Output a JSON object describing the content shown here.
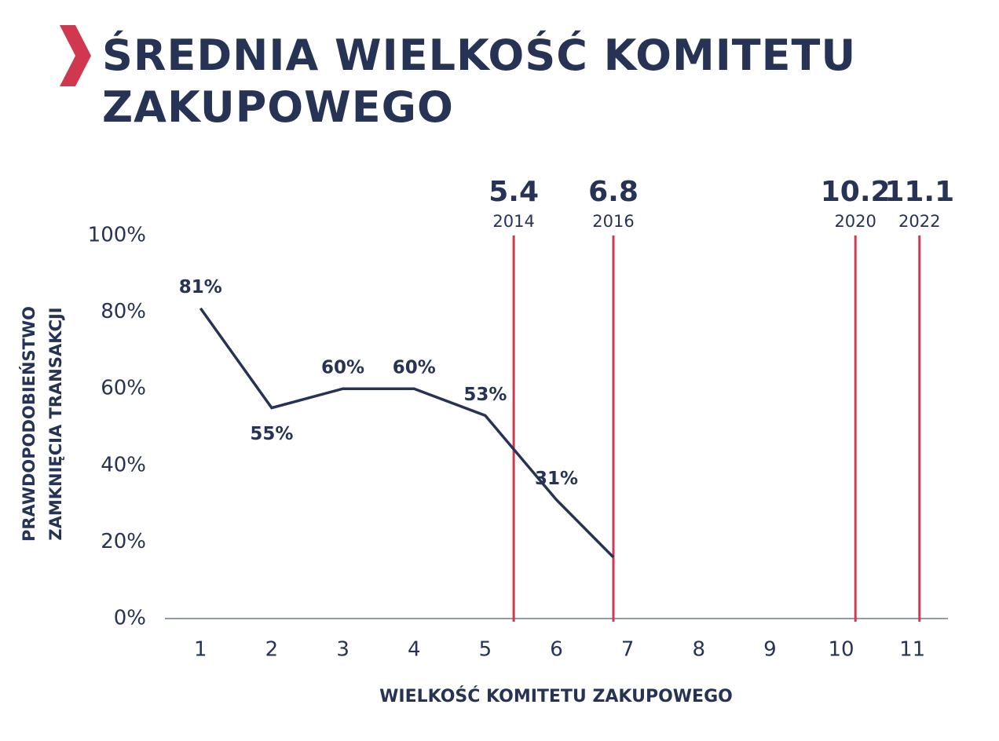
{
  "chart_data": {
    "type": "line",
    "title": "ŚREDNIA WIELKOŚĆ KOMITETU ZAKUPOWEGO",
    "xlabel": "WIELKOŚĆ KOMITETU ZAKUPOWEGO",
    "ylabel": [
      "PRAWDOPODOBIEŃSTWO",
      "ZAMKNIĘCIA TRANSAKCJI"
    ],
    "xlim": [
      0.5,
      11.5
    ],
    "xticks": [
      1,
      2,
      3,
      4,
      5,
      6,
      7,
      8,
      9,
      10,
      11
    ],
    "ylim": [
      0,
      100
    ],
    "yticks": [
      {
        "value": 0,
        "label": "0%"
      },
      {
        "value": 20,
        "label": "20%"
      },
      {
        "value": 40,
        "label": "40%"
      },
      {
        "value": 60,
        "label": "60%"
      },
      {
        "value": 80,
        "label": "80%"
      },
      {
        "value": 100,
        "label": "100%"
      }
    ],
    "series": [
      {
        "color": "#263354",
        "x": [
          1,
          2,
          3,
          4,
          5,
          6,
          6.8
        ],
        "values": [
          81,
          55,
          60,
          60,
          53,
          31,
          16
        ],
        "value_labels": [
          "81%",
          "55%",
          "60%",
          "60%",
          "53%",
          "31%",
          null
        ]
      }
    ],
    "reference_lines": [
      {
        "value": 5.4,
        "year": "2014"
      },
      {
        "value": 6.8,
        "year": "2016"
      },
      {
        "value": 10.2,
        "year": "2020"
      },
      {
        "value": 11.1,
        "year": "2022"
      }
    ],
    "reference_color": "#d0384f"
  }
}
